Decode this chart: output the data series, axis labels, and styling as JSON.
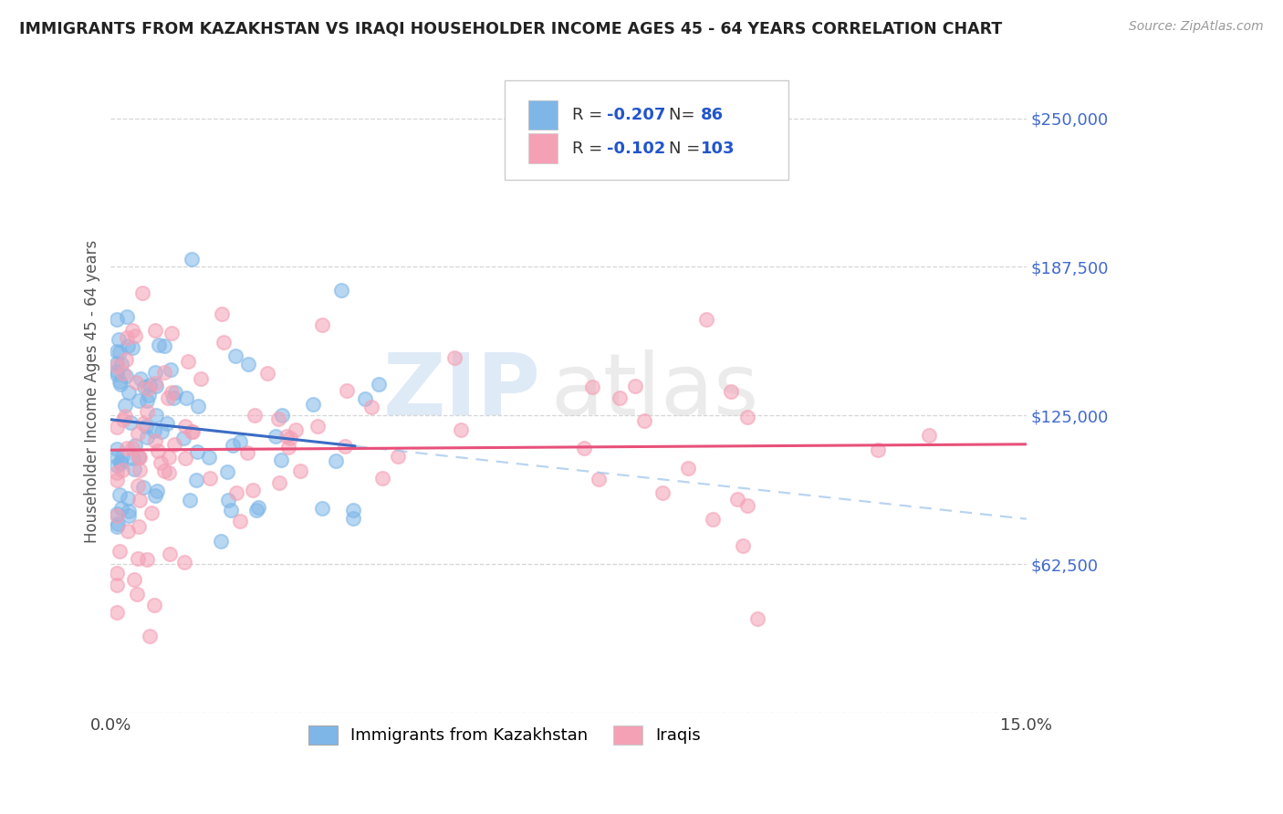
{
  "title": "IMMIGRANTS FROM KAZAKHSTAN VS IRAQI HOUSEHOLDER INCOME AGES 45 - 64 YEARS CORRELATION CHART",
  "source": "Source: ZipAtlas.com",
  "ylabel": "Householder Income Ages 45 - 64 years",
  "xlim": [
    0.0,
    0.15
  ],
  "ylim": [
    0,
    270000
  ],
  "ytick_vals": [
    0,
    62500,
    125000,
    187500,
    250000
  ],
  "ytick_labels": [
    "",
    "$62,500",
    "$125,000",
    "$187,500",
    "$250,000"
  ],
  "xtick_vals": [
    0.0,
    0.15
  ],
  "xtick_labels": [
    "0.0%",
    "15.0%"
  ],
  "legend_kaz_R": "-0.207",
  "legend_kaz_N": "86",
  "legend_irq_R": "-0.102",
  "legend_irq_N": "103",
  "color_kaz": "#7EB6E8",
  "color_irq": "#F4A0B5",
  "color_line_kaz": "#3B6CC4",
  "color_line_irq": "#E8507A",
  "color_line_kaz_dash": "#A8CAED",
  "watermark_zip": "ZIP",
  "watermark_atlas": "atlas",
  "ytick_color": "#4169CD",
  "grid_color": "#CCCCCC",
  "label_color": "#555555"
}
